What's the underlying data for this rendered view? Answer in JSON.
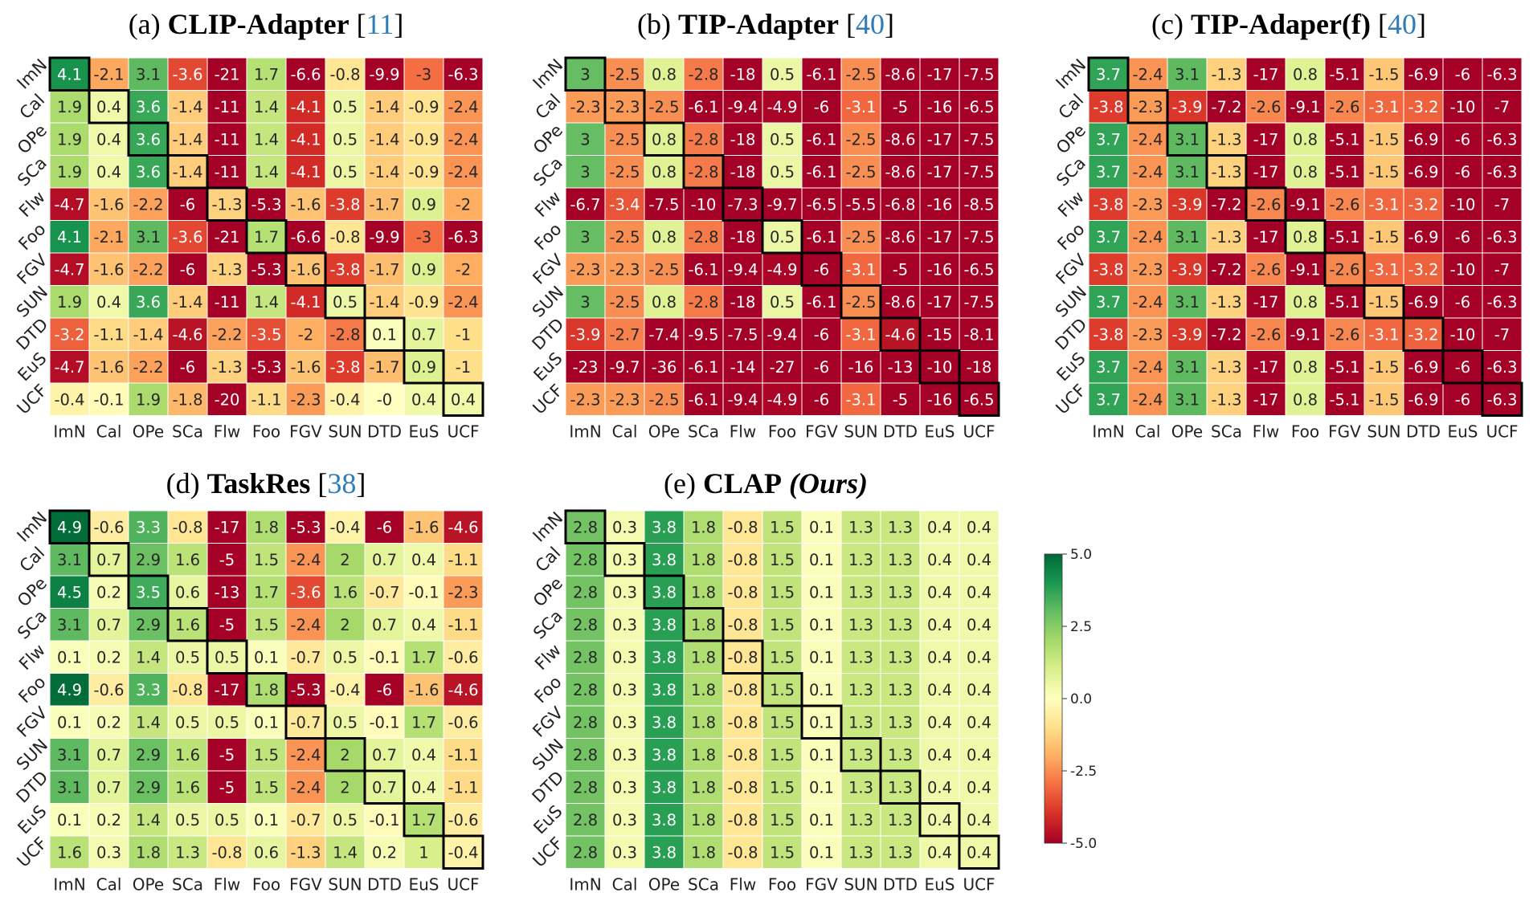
{
  "chart_data": [
    {
      "type": "heatmap",
      "title_prefix": "(a) ",
      "title_main": "CLIP-Adapter",
      "title_ref_open": " [",
      "title_ref": "11",
      "title_ref_close": "]",
      "x_labels": [
        "ImN",
        "Cal",
        "OPe",
        "SCa",
        "Flw",
        "Foo",
        "FGV",
        "SUN",
        "DTD",
        "EuS",
        "UCF"
      ],
      "y_labels": [
        "ImN",
        "Cal",
        "OPe",
        "SCa",
        "Flw",
        "Foo",
        "FGV",
        "SUN",
        "DTD",
        "EuS",
        "UCF"
      ],
      "values": [
        [
          "4.1",
          "-2.1",
          "3.1",
          "-3.6",
          "-21",
          "1.7",
          "-6.6",
          "-0.8",
          "-9.9",
          "-3",
          "-6.3"
        ],
        [
          "1.9",
          "0.4",
          "3.6",
          "-1.4",
          "-11",
          "1.4",
          "-4.1",
          "0.5",
          "-1.4",
          "-0.9",
          "-2.4"
        ],
        [
          "1.9",
          "0.4",
          "3.6",
          "-1.4",
          "-11",
          "1.4",
          "-4.1",
          "0.5",
          "-1.4",
          "-0.9",
          "-2.4"
        ],
        [
          "1.9",
          "0.4",
          "3.6",
          "-1.4",
          "-11",
          "1.4",
          "-4.1",
          "0.5",
          "-1.4",
          "-0.9",
          "-2.4"
        ],
        [
          "-4.7",
          "-1.6",
          "-2.2",
          "-6",
          "-1.3",
          "-5.3",
          "-1.6",
          "-3.8",
          "-1.7",
          "0.9",
          "-2"
        ],
        [
          "4.1",
          "-2.1",
          "3.1",
          "-3.6",
          "-21",
          "1.7",
          "-6.6",
          "-0.8",
          "-9.9",
          "-3",
          "-6.3"
        ],
        [
          "-4.7",
          "-1.6",
          "-2.2",
          "-6",
          "-1.3",
          "-5.3",
          "-1.6",
          "-3.8",
          "-1.7",
          "0.9",
          "-2"
        ],
        [
          "1.9",
          "0.4",
          "3.6",
          "-1.4",
          "-11",
          "1.4",
          "-4.1",
          "0.5",
          "-1.4",
          "-0.9",
          "-2.4"
        ],
        [
          "-3.2",
          "-1.1",
          "-1.4",
          "-4.6",
          "-2.2",
          "-3.5",
          "-2",
          "-2.8",
          "0.1",
          "0.7",
          "-1"
        ],
        [
          "-4.7",
          "-1.6",
          "-2.2",
          "-6",
          "-1.3",
          "-5.3",
          "-1.6",
          "-3.8",
          "-1.7",
          "0.9",
          "-1"
        ],
        [
          "-0.4",
          "-0.1",
          "1.9",
          "-1.8",
          "-20",
          "-1.1",
          "-2.3",
          "-0.4",
          "-0",
          "0.4",
          "0.4"
        ]
      ],
      "highlight": "diagonal"
    },
    {
      "type": "heatmap",
      "title_prefix": "(b) ",
      "title_main": "TIP-Adapter",
      "title_ref_open": " [",
      "title_ref": "40",
      "title_ref_close": "]",
      "x_labels": [
        "ImN",
        "Cal",
        "OPe",
        "SCa",
        "Flw",
        "Foo",
        "FGV",
        "SUN",
        "DTD",
        "EuS",
        "UCF"
      ],
      "y_labels": [
        "ImN",
        "Cal",
        "OPe",
        "SCa",
        "Flw",
        "Foo",
        "FGV",
        "SUN",
        "DTD",
        "EuS",
        "UCF"
      ],
      "values": [
        [
          "3",
          "-2.5",
          "0.8",
          "-2.8",
          "-18",
          "0.5",
          "-6.1",
          "-2.5",
          "-8.6",
          "-17",
          "-7.5"
        ],
        [
          "-2.3",
          "-2.3",
          "-2.5",
          "-6.1",
          "-9.4",
          "-4.9",
          "-6",
          "-3.1",
          "-5",
          "-16",
          "-6.5"
        ],
        [
          "3",
          "-2.5",
          "0.8",
          "-2.8",
          "-18",
          "0.5",
          "-6.1",
          "-2.5",
          "-8.6",
          "-17",
          "-7.5"
        ],
        [
          "3",
          "-2.5",
          "0.8",
          "-2.8",
          "-18",
          "0.5",
          "-6.1",
          "-2.5",
          "-8.6",
          "-17",
          "-7.5"
        ],
        [
          "-6.7",
          "-3.4",
          "-7.5",
          "-10",
          "-7.3",
          "-9.7",
          "-6.5",
          "-5.5",
          "-6.8",
          "-16",
          "-8.5"
        ],
        [
          "3",
          "-2.5",
          "0.8",
          "-2.8",
          "-18",
          "0.5",
          "-6.1",
          "-2.5",
          "-8.6",
          "-17",
          "-7.5"
        ],
        [
          "-2.3",
          "-2.3",
          "-2.5",
          "-6.1",
          "-9.4",
          "-4.9",
          "-6",
          "-3.1",
          "-5",
          "-16",
          "-6.5"
        ],
        [
          "3",
          "-2.5",
          "0.8",
          "-2.8",
          "-18",
          "0.5",
          "-6.1",
          "-2.5",
          "-8.6",
          "-17",
          "-7.5"
        ],
        [
          "-3.9",
          "-2.7",
          "-7.4",
          "-9.5",
          "-7.5",
          "-9.4",
          "-6",
          "-3.1",
          "-4.6",
          "-15",
          "-8.1"
        ],
        [
          "-23",
          "-9.7",
          "-36",
          "-6.1",
          "-14",
          "-27",
          "-6",
          "-16",
          "-13",
          "-10",
          "-18"
        ],
        [
          "-2.3",
          "-2.3",
          "-2.5",
          "-6.1",
          "-9.4",
          "-4.9",
          "-6",
          "-3.1",
          "-5",
          "-16",
          "-6.5"
        ]
      ],
      "highlight": "diagonal"
    },
    {
      "type": "heatmap",
      "title_prefix": "(c) ",
      "title_main": "TIP-Adaper(f)",
      "title_ref_open": " [",
      "title_ref": "40",
      "title_ref_close": "]",
      "x_labels": [
        "ImN",
        "Cal",
        "OPe",
        "SCa",
        "Flw",
        "Foo",
        "FGV",
        "SUN",
        "DTD",
        "EuS",
        "UCF"
      ],
      "y_labels": [
        "ImN",
        "Cal",
        "OPe",
        "SCa",
        "Flw",
        "Foo",
        "FGV",
        "SUN",
        "DTD",
        "EuS",
        "UCF"
      ],
      "values": [
        [
          "3.7",
          "-2.4",
          "3.1",
          "-1.3",
          "-17",
          "0.8",
          "-5.1",
          "-1.5",
          "-6.9",
          "-6",
          "-6.3"
        ],
        [
          "-3.8",
          "-2.3",
          "-3.9",
          "-7.2",
          "-2.6",
          "-9.1",
          "-2.6",
          "-3.1",
          "-3.2",
          "-10",
          "-7"
        ],
        [
          "3.7",
          "-2.4",
          "3.1",
          "-1.3",
          "-17",
          "0.8",
          "-5.1",
          "-1.5",
          "-6.9",
          "-6",
          "-6.3"
        ],
        [
          "3.7",
          "-2.4",
          "3.1",
          "-1.3",
          "-17",
          "0.8",
          "-5.1",
          "-1.5",
          "-6.9",
          "-6",
          "-6.3"
        ],
        [
          "-3.8",
          "-2.3",
          "-3.9",
          "-7.2",
          "-2.6",
          "-9.1",
          "-2.6",
          "-3.1",
          "-3.2",
          "-10",
          "-7"
        ],
        [
          "3.7",
          "-2.4",
          "3.1",
          "-1.3",
          "-17",
          "0.8",
          "-5.1",
          "-1.5",
          "-6.9",
          "-6",
          "-6.3"
        ],
        [
          "-3.8",
          "-2.3",
          "-3.9",
          "-7.2",
          "-2.6",
          "-9.1",
          "-2.6",
          "-3.1",
          "-3.2",
          "-10",
          "-7"
        ],
        [
          "3.7",
          "-2.4",
          "3.1",
          "-1.3",
          "-17",
          "0.8",
          "-5.1",
          "-1.5",
          "-6.9",
          "-6",
          "-6.3"
        ],
        [
          "-3.8",
          "-2.3",
          "-3.9",
          "-7.2",
          "-2.6",
          "-9.1",
          "-2.6",
          "-3.1",
          "-3.2",
          "-10",
          "-7"
        ],
        [
          "3.7",
          "-2.4",
          "3.1",
          "-1.3",
          "-17",
          "0.8",
          "-5.1",
          "-1.5",
          "-6.9",
          "-6",
          "-6.3"
        ],
        [
          "3.7",
          "-2.4",
          "3.1",
          "-1.3",
          "-17",
          "0.8",
          "-5.1",
          "-1.5",
          "-6.9",
          "-6",
          "-6.3"
        ]
      ],
      "highlight": "diagonal"
    },
    {
      "type": "heatmap",
      "title_prefix": "(d) ",
      "title_main": "TaskRes",
      "title_ref_open": " [",
      "title_ref": "38",
      "title_ref_close": "]",
      "x_labels": [
        "ImN",
        "Cal",
        "OPe",
        "SCa",
        "Flw",
        "Foo",
        "FGV",
        "SUN",
        "DTD",
        "EuS",
        "UCF"
      ],
      "y_labels": [
        "ImN",
        "Cal",
        "OPe",
        "SCa",
        "Flw",
        "Foo",
        "FGV",
        "SUN",
        "DTD",
        "EuS",
        "UCF"
      ],
      "values": [
        [
          "4.9",
          "-0.6",
          "3.3",
          "-0.8",
          "-17",
          "1.8",
          "-5.3",
          "-0.4",
          "-6",
          "-1.6",
          "-4.6"
        ],
        [
          "3.1",
          "0.7",
          "2.9",
          "1.6",
          "-5",
          "1.5",
          "-2.4",
          "2",
          "0.7",
          "0.4",
          "-1.1"
        ],
        [
          "4.5",
          "0.2",
          "3.5",
          "0.6",
          "-13",
          "1.7",
          "-3.6",
          "1.6",
          "-0.7",
          "-0.1",
          "-2.3"
        ],
        [
          "3.1",
          "0.7",
          "2.9",
          "1.6",
          "-5",
          "1.5",
          "-2.4",
          "2",
          "0.7",
          "0.4",
          "-1.1"
        ],
        [
          "0.1",
          "0.2",
          "1.4",
          "0.5",
          "0.5",
          "0.1",
          "-0.7",
          "0.5",
          "-0.1",
          "1.7",
          "-0.6"
        ],
        [
          "4.9",
          "-0.6",
          "3.3",
          "-0.8",
          "-17",
          "1.8",
          "-5.3",
          "-0.4",
          "-6",
          "-1.6",
          "-4.6"
        ],
        [
          "0.1",
          "0.2",
          "1.4",
          "0.5",
          "0.5",
          "0.1",
          "-0.7",
          "0.5",
          "-0.1",
          "1.7",
          "-0.6"
        ],
        [
          "3.1",
          "0.7",
          "2.9",
          "1.6",
          "-5",
          "1.5",
          "-2.4",
          "2",
          "0.7",
          "0.4",
          "-1.1"
        ],
        [
          "3.1",
          "0.7",
          "2.9",
          "1.6",
          "-5",
          "1.5",
          "-2.4",
          "2",
          "0.7",
          "0.4",
          "-1.1"
        ],
        [
          "0.1",
          "0.2",
          "1.4",
          "0.5",
          "0.5",
          "0.1",
          "-0.7",
          "0.5",
          "-0.1",
          "1.7",
          "-0.6"
        ],
        [
          "1.6",
          "0.3",
          "1.8",
          "1.3",
          "-0.8",
          "0.6",
          "-1.3",
          "1.4",
          "0.2",
          "1",
          "-0.4"
        ]
      ],
      "highlight": "diagonal"
    },
    {
      "type": "heatmap",
      "title_prefix": "(e) ",
      "title_main": "CLAP",
      "title_suffix": " (Ours)",
      "x_labels": [
        "ImN",
        "Cal",
        "OPe",
        "SCa",
        "Flw",
        "Foo",
        "FGV",
        "SUN",
        "DTD",
        "EuS",
        "UCF"
      ],
      "y_labels": [
        "ImN",
        "Cal",
        "OPe",
        "SCa",
        "Flw",
        "Foo",
        "FGV",
        "SUN",
        "DTD",
        "EuS",
        "UCF"
      ],
      "values": [
        [
          "2.8",
          "0.3",
          "3.8",
          "1.8",
          "-0.8",
          "1.5",
          "0.1",
          "1.3",
          "1.3",
          "0.4",
          "0.4"
        ],
        [
          "2.8",
          "0.3",
          "3.8",
          "1.8",
          "-0.8",
          "1.5",
          "0.1",
          "1.3",
          "1.3",
          "0.4",
          "0.4"
        ],
        [
          "2.8",
          "0.3",
          "3.8",
          "1.8",
          "-0.8",
          "1.5",
          "0.1",
          "1.3",
          "1.3",
          "0.4",
          "0.4"
        ],
        [
          "2.8",
          "0.3",
          "3.8",
          "1.8",
          "-0.8",
          "1.5",
          "0.1",
          "1.3",
          "1.3",
          "0.4",
          "0.4"
        ],
        [
          "2.8",
          "0.3",
          "3.8",
          "1.8",
          "-0.8",
          "1.5",
          "0.1",
          "1.3",
          "1.3",
          "0.4",
          "0.4"
        ],
        [
          "2.8",
          "0.3",
          "3.8",
          "1.8",
          "-0.8",
          "1.5",
          "0.1",
          "1.3",
          "1.3",
          "0.4",
          "0.4"
        ],
        [
          "2.8",
          "0.3",
          "3.8",
          "1.8",
          "-0.8",
          "1.5",
          "0.1",
          "1.3",
          "1.3",
          "0.4",
          "0.4"
        ],
        [
          "2.8",
          "0.3",
          "3.8",
          "1.8",
          "-0.8",
          "1.5",
          "0.1",
          "1.3",
          "1.3",
          "0.4",
          "0.4"
        ],
        [
          "2.8",
          "0.3",
          "3.8",
          "1.8",
          "-0.8",
          "1.5",
          "0.1",
          "1.3",
          "1.3",
          "0.4",
          "0.4"
        ],
        [
          "2.8",
          "0.3",
          "3.8",
          "1.8",
          "-0.8",
          "1.5",
          "0.1",
          "1.3",
          "1.3",
          "0.4",
          "0.4"
        ],
        [
          "2.8",
          "0.3",
          "3.8",
          "1.8",
          "-0.8",
          "1.5",
          "0.1",
          "1.3",
          "1.3",
          "0.4",
          "0.4"
        ]
      ],
      "highlight": "diagonal"
    }
  ],
  "colorbar": {
    "min": -5.0,
    "max": 5.0,
    "ticks": [
      "5.0",
      "2.5",
      "0.0",
      "-2.5",
      "-5.0"
    ],
    "colormap": "RdYlGn",
    "stops": [
      "#a50026",
      "#d73027",
      "#f46d43",
      "#fdae61",
      "#fee08b",
      "#ffffbf",
      "#d9ef8b",
      "#a6d96a",
      "#66bd63",
      "#1a9850",
      "#006837"
    ]
  }
}
